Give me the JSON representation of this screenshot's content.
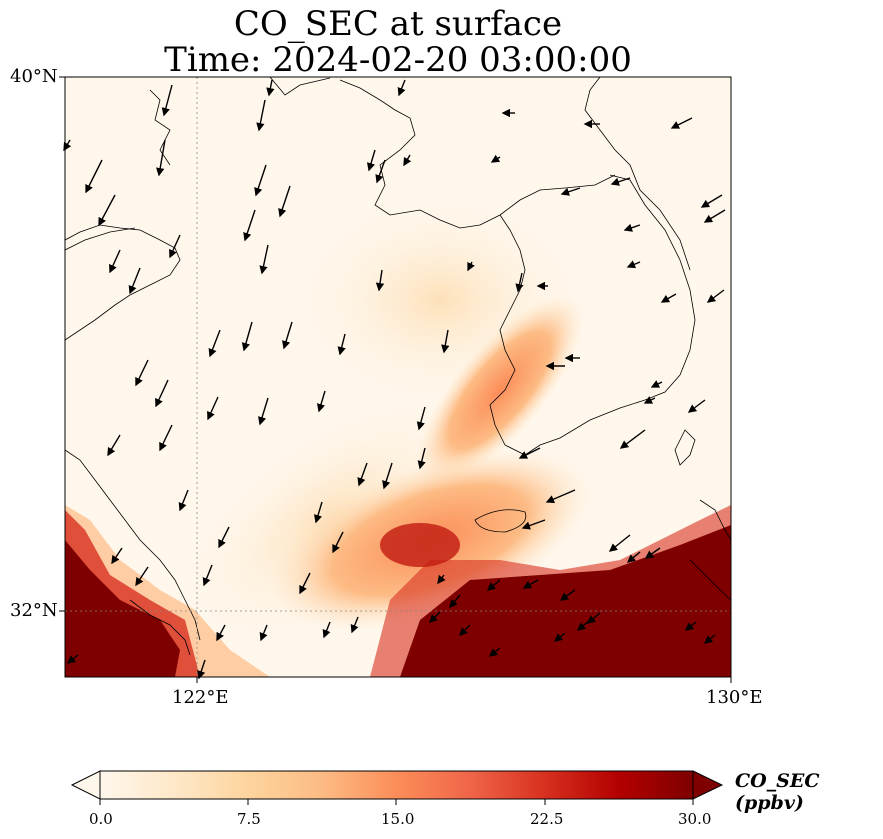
{
  "title_line1": "CO_SEC at surface",
  "title_line2": "Time: 2024-02-20 03:00:00",
  "lat_labels": [
    "40°N",
    "32°N"
  ],
  "lon_labels": [
    "122°E",
    "130°E"
  ],
  "map_extent": {
    "lon_min": 120,
    "lon_max": 130,
    "lat_min": 31,
    "lat_max": 40
  },
  "gridlines": {
    "lon": [
      122,
      130
    ],
    "lat": [
      32,
      40
    ],
    "style": "dotted gray"
  },
  "colorbar": {
    "label": "CO_SEC (ppbv)",
    "ticks": [
      "0.0",
      "7.5",
      "15.0",
      "22.5",
      "30.0"
    ],
    "min": 0,
    "max": 30,
    "extend": "both",
    "colormap": "OrRd",
    "colors": [
      "#fff7ec",
      "#fee8c8",
      "#fdd49e",
      "#fdbb84",
      "#fc8d59",
      "#ef6548",
      "#d7301f",
      "#b30000",
      "#7f0000"
    ]
  },
  "chart_data": {
    "type": "heatmap",
    "variable": "CO_SEC",
    "units": "ppbv",
    "high_regions": [
      "southwest coast (Shanghai area)",
      "southeast of domain (south of Korea / Kyushu)",
      "plume along Korean west coast"
    ],
    "wind_direction": "predominantly northerly (arrows pointing south-southwest)"
  }
}
